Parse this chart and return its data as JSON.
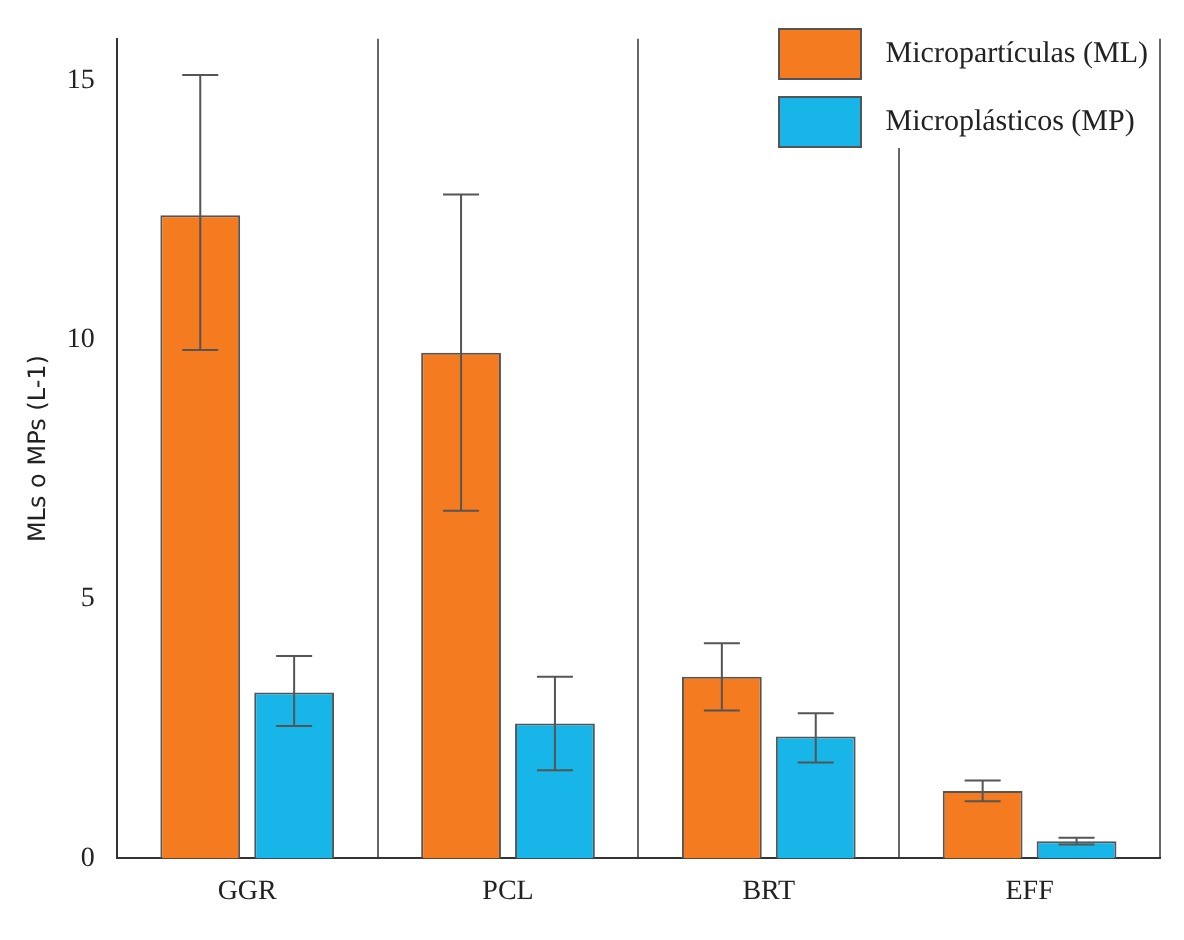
{
  "chart_data": {
    "type": "bar",
    "ylabel": "MLs o MPs (L-1)",
    "categories": [
      "GGR",
      "PCL",
      "BRT",
      "EFF"
    ],
    "series": [
      {
        "name": "Micropartículas (ML)",
        "color": "#f47b20",
        "values": [
          12.4,
          9.75,
          3.5,
          1.3
        ],
        "errors": [
          [
            9.8,
            15.1
          ],
          [
            6.7,
            12.8
          ],
          [
            2.85,
            4.15
          ],
          [
            1.1,
            1.5
          ]
        ]
      },
      {
        "name": "Microplásticos (MP)",
        "color": "#17b5e8",
        "values": [
          3.2,
          2.6,
          2.35,
          0.33
        ],
        "errors": [
          [
            2.55,
            3.9
          ],
          [
            1.7,
            3.5
          ],
          [
            1.85,
            2.8
          ],
          [
            0.27,
            0.4
          ]
        ]
      }
    ],
    "ylim": [
      0,
      15.8
    ],
    "yticks": [
      0,
      5,
      10,
      15
    ],
    "grid": "x",
    "legend": "top right"
  }
}
